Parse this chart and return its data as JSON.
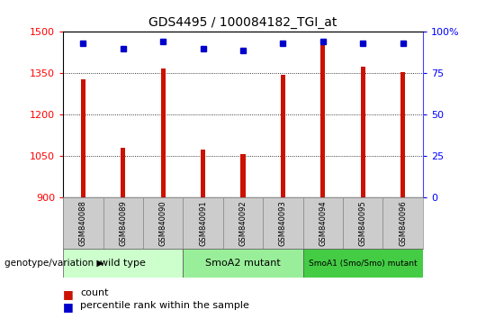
{
  "title": "GDS4495 / 100084182_TGI_at",
  "samples": [
    "GSM840088",
    "GSM840089",
    "GSM840090",
    "GSM840091",
    "GSM840092",
    "GSM840093",
    "GSM840094",
    "GSM840095",
    "GSM840096"
  ],
  "counts": [
    1330,
    1080,
    1368,
    1075,
    1057,
    1345,
    1460,
    1375,
    1355
  ],
  "percentiles": [
    93,
    90,
    94,
    90,
    89,
    93,
    94,
    93,
    93
  ],
  "groups": [
    {
      "label": "wild type",
      "start": 0,
      "end": 3,
      "color": "#ccffcc"
    },
    {
      "label": "SmoA2 mutant",
      "start": 3,
      "end": 6,
      "color": "#99ee99"
    },
    {
      "label": "SmoA1 (Smo/Smo) mutant",
      "start": 6,
      "end": 9,
      "color": "#44cc44"
    }
  ],
  "ylim_left": [
    900,
    1500
  ],
  "ylim_right": [
    0,
    100
  ],
  "yticks_left": [
    900,
    1050,
    1200,
    1350,
    1500
  ],
  "yticks_right": [
    0,
    25,
    50,
    75,
    100
  ],
  "bar_color": "#cc1100",
  "dot_color": "#0000cc",
  "bar_width": 0.12,
  "grid_color": "#000000",
  "bg_color": "#ffffff",
  "legend_count_label": "count",
  "legend_pct_label": "percentile rank within the sample",
  "genotype_label": "genotype/variation",
  "group_colors": [
    "#ccffcc",
    "#88ee88",
    "#33bb33"
  ],
  "sample_box_color": "#cccccc"
}
